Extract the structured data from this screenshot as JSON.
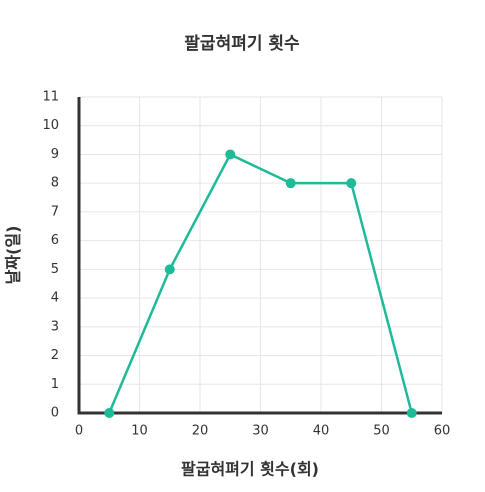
{
  "chart_data": {
    "type": "line",
    "title": "팔굽혀펴기 횟수",
    "x_label": "팔굽혀펴기 횟수(회)",
    "y_label": "날짜(일)",
    "x": [
      5,
      15,
      25,
      35,
      45,
      55
    ],
    "series": [
      {
        "color": "#1fba98",
        "values": [
          0,
          5,
          9,
          8,
          8,
          0
        ]
      }
    ],
    "xlim": [
      0,
      60
    ],
    "xticks": [
      0,
      10,
      20,
      30,
      40,
      50,
      60
    ],
    "ylim": [
      0,
      11
    ],
    "yticks": [
      0,
      1,
      2,
      3,
      4,
      5,
      6,
      7,
      8,
      9,
      10,
      11
    ],
    "grid": true
  }
}
